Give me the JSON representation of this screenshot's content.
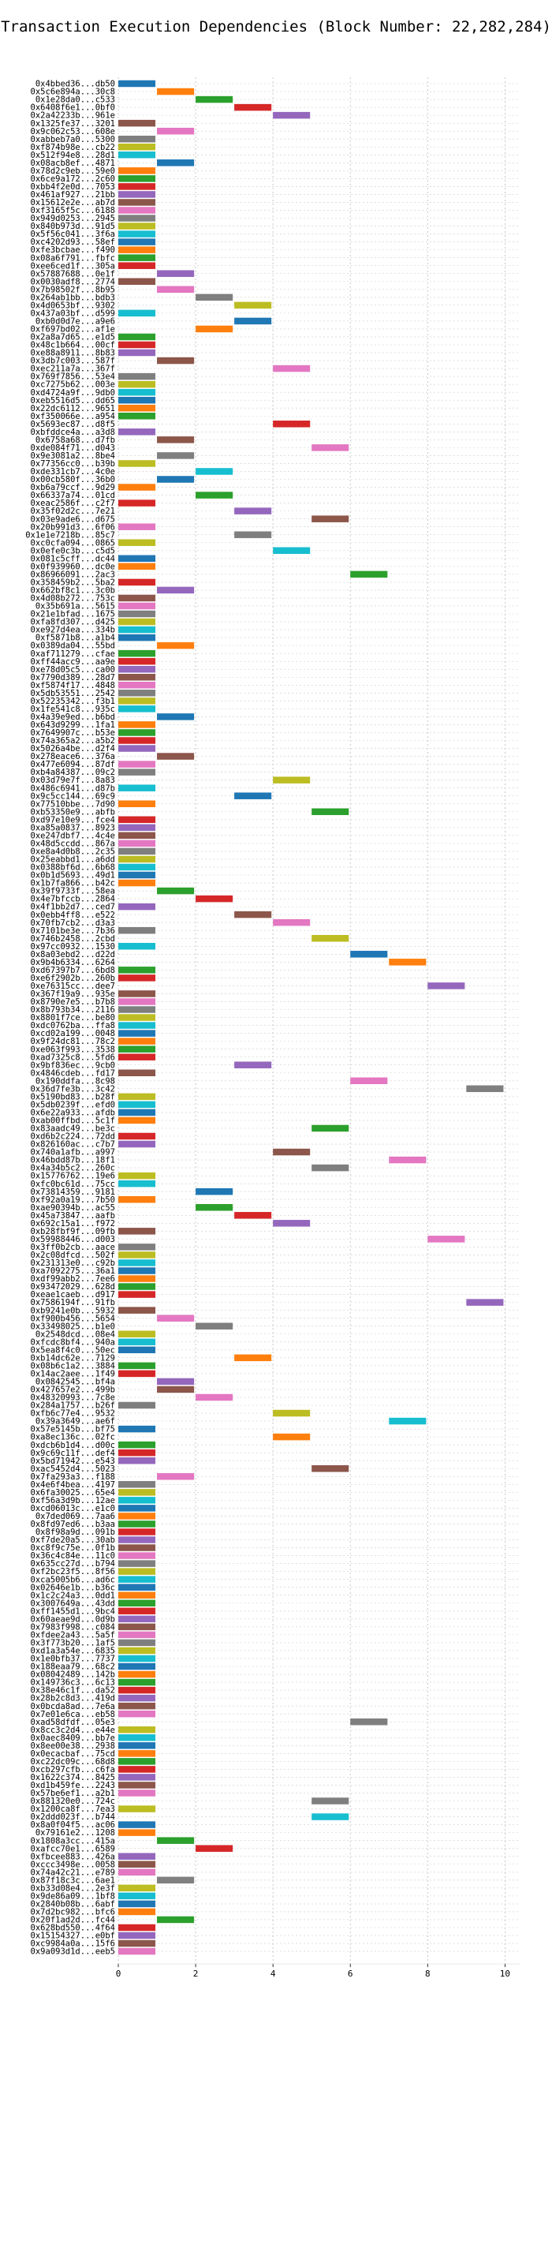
{
  "chart_data": {
    "type": "bar",
    "title": "Transaction Execution Dependencies (Block Number: 22,282,284)",
    "xlabel": "",
    "ylabel": "",
    "xlim": [
      0,
      10.4
    ],
    "xticks": [
      0,
      2,
      4,
      6,
      8,
      10
    ],
    "grid": true,
    "bar_colors": [
      "#1f77b4",
      "#ff7f0e",
      "#2ca02c",
      "#d62728",
      "#9467bd",
      "#8c564b",
      "#e377c2",
      "#7f7f7f",
      "#bcbd22",
      "#17becf"
    ],
    "transactions": [
      {
        "label": "0x4bbed36...db50",
        "start": 0
      },
      {
        "label": "0x5c6e894a...30c8",
        "start": 1
      },
      {
        "label": "0x1e28da0...c533",
        "start": 2
      },
      {
        "label": "0x6408f6e1...0bf0",
        "start": 3
      },
      {
        "label": "0x2a42233b...961e",
        "start": 4
      },
      {
        "label": "0x1325fe37...3201",
        "start": 0
      },
      {
        "label": "0x9c062c53...608e",
        "start": 1
      },
      {
        "label": "0xabbeb7a0...5300",
        "start": 0
      },
      {
        "label": "0xf874b98e...cb22",
        "start": 0
      },
      {
        "label": "0x512f94e8...28d1",
        "start": 0
      },
      {
        "label": "0x08acb8ef...4871",
        "start": 1
      },
      {
        "label": "0x78d2c9eb...59e0",
        "start": 0
      },
      {
        "label": "0x6ce9a172...2c60",
        "start": 0
      },
      {
        "label": "0xbb4f2e0d...7053",
        "start": 0
      },
      {
        "label": "0x461af927...21bb",
        "start": 0
      },
      {
        "label": "0x15612e2e...ab7d",
        "start": 0
      },
      {
        "label": "0xf3165f5c...6188",
        "start": 0
      },
      {
        "label": "0x949d0253...2945",
        "start": 0
      },
      {
        "label": "0x840b973d...91d5",
        "start": 0
      },
      {
        "label": "0x5f56c041...3f6a",
        "start": 0
      },
      {
        "label": "0xc4202d93...58ef",
        "start": 0
      },
      {
        "label": "0xfe3bcbae...f490",
        "start": 0
      },
      {
        "label": "0x08a6f791...fbfc",
        "start": 0
      },
      {
        "label": "0xee6ced1f...305a",
        "start": 0
      },
      {
        "label": "0x57887688...0e1f",
        "start": 1
      },
      {
        "label": "0x0030adf8...2774",
        "start": 0
      },
      {
        "label": "0x7b98502f...8b95",
        "start": 1
      },
      {
        "label": "0x264ab1bb...bdb3",
        "start": 2
      },
      {
        "label": "0x4d0653bf...9302",
        "start": 3
      },
      {
        "label": "0x437a03bf...d599",
        "start": 0
      },
      {
        "label": "0xb0d0d7e...a9e6",
        "start": 3
      },
      {
        "label": "0xf697bd02...af1e",
        "start": 2
      },
      {
        "label": "0x2a8a7d65...e1d5",
        "start": 0
      },
      {
        "label": "0x48c1b664...00cf",
        "start": 0
      },
      {
        "label": "0xe88a8911...8b83",
        "start": 0
      },
      {
        "label": "0x3db7c003...587f",
        "start": 1
      },
      {
        "label": "0xec211a7a...367f",
        "start": 4
      },
      {
        "label": "0x769f7856...53e4",
        "start": 0
      },
      {
        "label": "0xc7275b62...003e",
        "start": 0
      },
      {
        "label": "0xd4724a9f...9db0",
        "start": 0
      },
      {
        "label": "0xeb5516d5...dd65",
        "start": 0
      },
      {
        "label": "0x22dc6112...9651",
        "start": 0
      },
      {
        "label": "0xf350066e...a954",
        "start": 0
      },
      {
        "label": "0x5693ec87...d8f5",
        "start": 4
      },
      {
        "label": "0xbfddce4a...a3d8",
        "start": 0
      },
      {
        "label": "0x6758a68...d7fb",
        "start": 1
      },
      {
        "label": "0xde084f71...d043",
        "start": 5
      },
      {
        "label": "0x9e3081a2...8be4",
        "start": 1
      },
      {
        "label": "0x77356cc0...b39b",
        "start": 0
      },
      {
        "label": "0xde331cb7...4c0e",
        "start": 2
      },
      {
        "label": "0x00cb580f...36b0",
        "start": 1
      },
      {
        "label": "0xb6a79ccf...9d29",
        "start": 0
      },
      {
        "label": "0x66337a74...01cd",
        "start": 2
      },
      {
        "label": "0xeac2586f...c2f7",
        "start": 0
      },
      {
        "label": "0x35f02d2c...7e21",
        "start": 3
      },
      {
        "label": "0x03e9ade6...d675",
        "start": 5
      },
      {
        "label": "0x20b991d3...6f06",
        "start": 0
      },
      {
        "label": "0x1e1e7218b...85c7",
        "start": 3
      },
      {
        "label": "0xc0cfa094...0865",
        "start": 0
      },
      {
        "label": "0x0efe0c3b...c5d5",
        "start": 4
      },
      {
        "label": "0x081c5cff...dc44",
        "start": 0
      },
      {
        "label": "0x0f939960...dc0e",
        "start": 0
      },
      {
        "label": "0x86966091...2ac3",
        "start": 6
      },
      {
        "label": "0x358459b2...5ba2",
        "start": 0
      },
      {
        "label": "0x662bf8c1...3c0b",
        "start": 1
      },
      {
        "label": "0x4d08b272...753c",
        "start": 0
      },
      {
        "label": "0x35b691a...5615",
        "start": 0
      },
      {
        "label": "0x21e1bfad...1675",
        "start": 0
      },
      {
        "label": "0xfa8fd307...d425",
        "start": 0
      },
      {
        "label": "0xe927d4ea...334b",
        "start": 0
      },
      {
        "label": "0xf5871b8...a1b4",
        "start": 0
      },
      {
        "label": "0x0389da04...55bd",
        "start": 1
      },
      {
        "label": "0xaf711279...cfae",
        "start": 0
      },
      {
        "label": "0xff44acc9...aa9e",
        "start": 0
      },
      {
        "label": "0xe78d05c5...ca00",
        "start": 0
      },
      {
        "label": "0x7790d389...28d7",
        "start": 0
      },
      {
        "label": "0xf5874f17...4848",
        "start": 0
      },
      {
        "label": "0x5db53551...2542",
        "start": 0
      },
      {
        "label": "0x52235342...f3b1",
        "start": 0
      },
      {
        "label": "0x1fe541c8...935c",
        "start": 0
      },
      {
        "label": "0x4a39e9ed...b6bd",
        "start": 1
      },
      {
        "label": "0x643d9299...1fa1",
        "start": 0
      },
      {
        "label": "0x7649907c...b53e",
        "start": 0
      },
      {
        "label": "0x74a365a2...a5b2",
        "start": 0
      },
      {
        "label": "0x5026a4be...d2f4",
        "start": 0
      },
      {
        "label": "0x278eace6...376a",
        "start": 1
      },
      {
        "label": "0x477e6094...87df",
        "start": 0
      },
      {
        "label": "0xb4a84387...09c2",
        "start": 0
      },
      {
        "label": "0x03d79e7f...8a83",
        "start": 4
      },
      {
        "label": "0x486c6941...d87b",
        "start": 0
      },
      {
        "label": "0x9c5cc144...69c9",
        "start": 3
      },
      {
        "label": "0x77510bbe...7d90",
        "start": 0
      },
      {
        "label": "0xb53350e9...abfb",
        "start": 5
      },
      {
        "label": "0xd97e10e9...fce4",
        "start": 0
      },
      {
        "label": "0xa85a0837...8923",
        "start": 0
      },
      {
        "label": "0xe247dbf7...4c4e",
        "start": 0
      },
      {
        "label": "0x48d5ccdd...867a",
        "start": 0
      },
      {
        "label": "0xe8a4d0b8...2c35",
        "start": 0
      },
      {
        "label": "0x25eabbd1...a6dd",
        "start": 0
      },
      {
        "label": "0x0388bf6d...6b68",
        "start": 0
      },
      {
        "label": "0x0b1d5693...49d1",
        "start": 0
      },
      {
        "label": "0x1b7fa866...b42c",
        "start": 0
      },
      {
        "label": "0x39f9733f...58ea",
        "start": 1
      },
      {
        "label": "0x4e7bfccb...2864",
        "start": 2
      },
      {
        "label": "0x4f1bb2d7...ced7",
        "start": 0
      },
      {
        "label": "0x0ebb4ff8...e522",
        "start": 3
      },
      {
        "label": "0x70fb7cb2...d3a3",
        "start": 4
      },
      {
        "label": "0x7101be3e...7b36",
        "start": 0
      },
      {
        "label": "0x746b2458...2cbd",
        "start": 5
      },
      {
        "label": "0x97cc0932...1530",
        "start": 0
      },
      {
        "label": "0x8a03ebd2...d22d",
        "start": 6
      },
      {
        "label": "0x9b4b6334...6264",
        "start": 7
      },
      {
        "label": "0xd67397b7...6bd8",
        "start": 0
      },
      {
        "label": "0xe6f2902b...260b",
        "start": 0
      },
      {
        "label": "0xe76315cc...dee7",
        "start": 8
      },
      {
        "label": "0x367f19a9...935e",
        "start": 0
      },
      {
        "label": "0x8790e7e5...b7b8",
        "start": 0
      },
      {
        "label": "0x8b793b34...2116",
        "start": 0
      },
      {
        "label": "0x8801f7ce...be80",
        "start": 0
      },
      {
        "label": "0xdc0762ba...ffa8",
        "start": 0
      },
      {
        "label": "0xcd02a199...0048",
        "start": 0
      },
      {
        "label": "0x9f24dc81...78c2",
        "start": 0
      },
      {
        "label": "0xe063f993...3538",
        "start": 0
      },
      {
        "label": "0xad7325c8...5fd6",
        "start": 0
      },
      {
        "label": "0x9bf836ec...9cb0",
        "start": 3
      },
      {
        "label": "0x4846cdeb...fd17",
        "start": 0
      },
      {
        "label": "0x190ddfa...8c98",
        "start": 6
      },
      {
        "label": "0x36d7fe3b...3c42",
        "start": 9
      },
      {
        "label": "0x5190bd83...b28f",
        "start": 0
      },
      {
        "label": "0x5db0239f...efd0",
        "start": 0
      },
      {
        "label": "0x6e22a933...afdb",
        "start": 0
      },
      {
        "label": "0xab00ffbd...5c1f",
        "start": 0
      },
      {
        "label": "0x83aadc49...be3c",
        "start": 5
      },
      {
        "label": "0xd6b2c224...72dd",
        "start": 0
      },
      {
        "label": "0x826160ac...c7b7",
        "start": 0
      },
      {
        "label": "0x740a1afb...a997",
        "start": 4
      },
      {
        "label": "0x46bdd87b...18f1",
        "start": 7
      },
      {
        "label": "0x4a34b5c2...260c",
        "start": 5
      },
      {
        "label": "0x15776762...19e6",
        "start": 0
      },
      {
        "label": "0xfc0bc61d...75cc",
        "start": 0
      },
      {
        "label": "0x73814359...9181",
        "start": 2
      },
      {
        "label": "0xf92a0a19...7b50",
        "start": 0
      },
      {
        "label": "0xae90394b...ac55",
        "start": 2
      },
      {
        "label": "0x45a73847...aafb",
        "start": 3
      },
      {
        "label": "0x692c15a1...f972",
        "start": 4
      },
      {
        "label": "0xb28fbf9f...09fb",
        "start": 0
      },
      {
        "label": "0x59988446...d003",
        "start": 8
      },
      {
        "label": "0x3ff0b2cb...aace",
        "start": 0
      },
      {
        "label": "0x2c08dfcd...502f",
        "start": 0
      },
      {
        "label": "0x231313e0...c92b",
        "start": 0
      },
      {
        "label": "0xa7092275...36a1",
        "start": 0
      },
      {
        "label": "0xdf99abb2...7ee6",
        "start": 0
      },
      {
        "label": "0x93472029...628d",
        "start": 0
      },
      {
        "label": "0xeae1caeb...d917",
        "start": 0
      },
      {
        "label": "0x7586194f...91fb",
        "start": 9
      },
      {
        "label": "0xb9241e0b...5932",
        "start": 0
      },
      {
        "label": "0xf900b456...5654",
        "start": 1
      },
      {
        "label": "0x33498025...b1e0",
        "start": 2
      },
      {
        "label": "0x2548dcd...08e4",
        "start": 0
      },
      {
        "label": "0xfcdc8bf4...940a",
        "start": 0
      },
      {
        "label": "0x5ea8f4c0...50ec",
        "start": 0
      },
      {
        "label": "0xb14dc62e...7129",
        "start": 3
      },
      {
        "label": "0x08b6c1a2...3884",
        "start": 0
      },
      {
        "label": "0x14ac2aee...1f49",
        "start": 0
      },
      {
        "label": "0x0842545...bf4a",
        "start": 1
      },
      {
        "label": "0x427657e2...499b",
        "start": 1
      },
      {
        "label": "0x48320993...7c8e",
        "start": 2
      },
      {
        "label": "0x284a1757...b26f",
        "start": 0
      },
      {
        "label": "0xfb6c77e4...9532",
        "start": 4
      },
      {
        "label": "0x39a3649...ae6f",
        "start": 7
      },
      {
        "label": "0x57e5145b...bf75",
        "start": 0
      },
      {
        "label": "0xa8ec136c...02fc",
        "start": 4
      },
      {
        "label": "0xdcb6b1d4...d00c",
        "start": 0
      },
      {
        "label": "0x9c69c11f...def4",
        "start": 0
      },
      {
        "label": "0x5bd71942...e543",
        "start": 0
      },
      {
        "label": "0xac5452d4...5023",
        "start": 5
      },
      {
        "label": "0x7fa293a3...f188",
        "start": 1
      },
      {
        "label": "0x4e6f4bea...4197",
        "start": 0
      },
      {
        "label": "0x6fa30025...65e4",
        "start": 0
      },
      {
        "label": "0xf56a3d9b...12ae",
        "start": 0
      },
      {
        "label": "0xcd06013c...e1c0",
        "start": 0
      },
      {
        "label": "0x7ded069...7aa6",
        "start": 0
      },
      {
        "label": "0x8fd97ed6...b3aa",
        "start": 0
      },
      {
        "label": "0x8f98a9d...091b",
        "start": 0
      },
      {
        "label": "0xf7de20a5...30ab",
        "start": 0
      },
      {
        "label": "0xc8f9c75e...0f1b",
        "start": 0
      },
      {
        "label": "0x36c4c84e...11c0",
        "start": 0
      },
      {
        "label": "0x635cc27d...b794",
        "start": 0
      },
      {
        "label": "0xf2bc23f5...8f56",
        "start": 0
      },
      {
        "label": "0xca5005b6...ad6c",
        "start": 0
      },
      {
        "label": "0x02646e1b...b36c",
        "start": 0
      },
      {
        "label": "0x1c2c24a3...0dd1",
        "start": 0
      },
      {
        "label": "0x3007649a...43dd",
        "start": 0
      },
      {
        "label": "0xff1455d1...9bc4",
        "start": 0
      },
      {
        "label": "0x60aeae9d...0d9b",
        "start": 0
      },
      {
        "label": "0x7983f998...c084",
        "start": 0
      },
      {
        "label": "0xfdee2a43...5a5f",
        "start": 0
      },
      {
        "label": "0x3f773b20...1af5",
        "start": 0
      },
      {
        "label": "0xd1a3a54e...6835",
        "start": 0
      },
      {
        "label": "0x1e0bfb37...7737",
        "start": 0
      },
      {
        "label": "0x188eaa79...68c2",
        "start": 0
      },
      {
        "label": "0x08042489...142b",
        "start": 0
      },
      {
        "label": "0x149736c3...6c13",
        "start": 0
      },
      {
        "label": "0x38e46c1f...da52",
        "start": 0
      },
      {
        "label": "0x28b2c8d3...419d",
        "start": 0
      },
      {
        "label": "0x0bcda8ad...7e6a",
        "start": 0
      },
      {
        "label": "0x7e01e6ca...eb58",
        "start": 0
      },
      {
        "label": "0xad58dfdf...05e3",
        "start": 6
      },
      {
        "label": "0x8cc3c2d4...e44e",
        "start": 0
      },
      {
        "label": "0x0aec8409...bb7e",
        "start": 0
      },
      {
        "label": "0x8ee00e38...2938",
        "start": 0
      },
      {
        "label": "0x0ecacbaf...75cd",
        "start": 0
      },
      {
        "label": "0xc22dc09c...68d8",
        "start": 0
      },
      {
        "label": "0xcb297cfb...c6fa",
        "start": 0
      },
      {
        "label": "0x1622c374...8425",
        "start": 0
      },
      {
        "label": "0xd1b459fe...2243",
        "start": 0
      },
      {
        "label": "0x57be6ef1...a2b1",
        "start": 0
      },
      {
        "label": "0x881320e0...724c",
        "start": 5
      },
      {
        "label": "0x1200ca8f...7ea3",
        "start": 0
      },
      {
        "label": "0x2ddd023f...b744",
        "start": 5
      },
      {
        "label": "0x8a0f04f5...ac06",
        "start": 0
      },
      {
        "label": "0x79161e2...1208",
        "start": 0
      },
      {
        "label": "0x1808a3cc...415a",
        "start": 1
      },
      {
        "label": "0xafcc70e1...6589",
        "start": 2
      },
      {
        "label": "0xfbcee883...426a",
        "start": 0
      },
      {
        "label": "0xccc3498e...0058",
        "start": 0
      },
      {
        "label": "0x74a42c21...e789",
        "start": 0
      },
      {
        "label": "0x87f18c3c...6ae1",
        "start": 1
      },
      {
        "label": "0xb33d08e4...2e3f",
        "start": 0
      },
      {
        "label": "0x9de86a09...1bf8",
        "start": 0
      },
      {
        "label": "0x2840b08b...6abf",
        "start": 0
      },
      {
        "label": "0x7d2bc982...bfc6",
        "start": 0
      },
      {
        "label": "0x20f1ad2d...fc44",
        "start": 1
      },
      {
        "label": "0x628bd550...4f64",
        "start": 0
      },
      {
        "label": "0x15154327...e0bf",
        "start": 0
      },
      {
        "label": "0xc9984a0a...15f6",
        "start": 0
      },
      {
        "label": "0x9a093d1d...eeb5",
        "start": 0
      }
    ]
  }
}
